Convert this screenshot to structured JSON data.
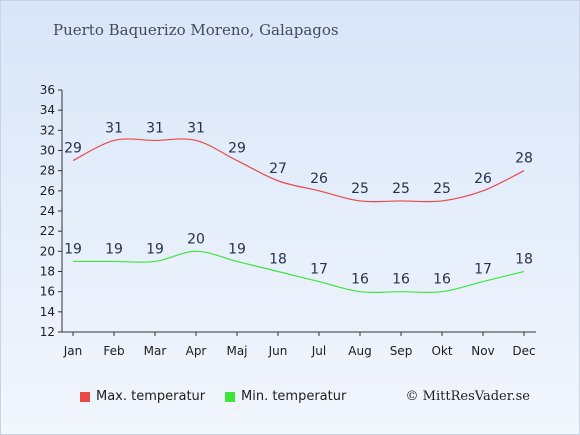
{
  "chart_data": {
    "type": "line",
    "title": "Puerto Baquerizo Moreno, Galapagos",
    "categories": [
      "Jan",
      "Feb",
      "Mar",
      "Apr",
      "Maj",
      "Jun",
      "Jul",
      "Aug",
      "Sep",
      "Okt",
      "Nov",
      "Dec"
    ],
    "series": [
      {
        "name": "Max. temperatur",
        "color": "#e84a4a",
        "values": [
          29,
          31,
          31,
          31,
          29,
          27,
          26,
          25,
          25,
          25,
          26,
          28
        ]
      },
      {
        "name": "Min. temperatur",
        "color": "#3ce63c",
        "values": [
          19,
          19,
          19,
          20,
          19,
          18,
          17,
          16,
          16,
          16,
          17,
          18
        ]
      }
    ],
    "yticks": [
      12,
      14,
      16,
      18,
      20,
      22,
      24,
      26,
      28,
      30,
      32,
      34,
      36
    ],
    "ylim": [
      12,
      36
    ],
    "grid": false,
    "legend": "bottom"
  },
  "copyright": "© MittResVader.se"
}
